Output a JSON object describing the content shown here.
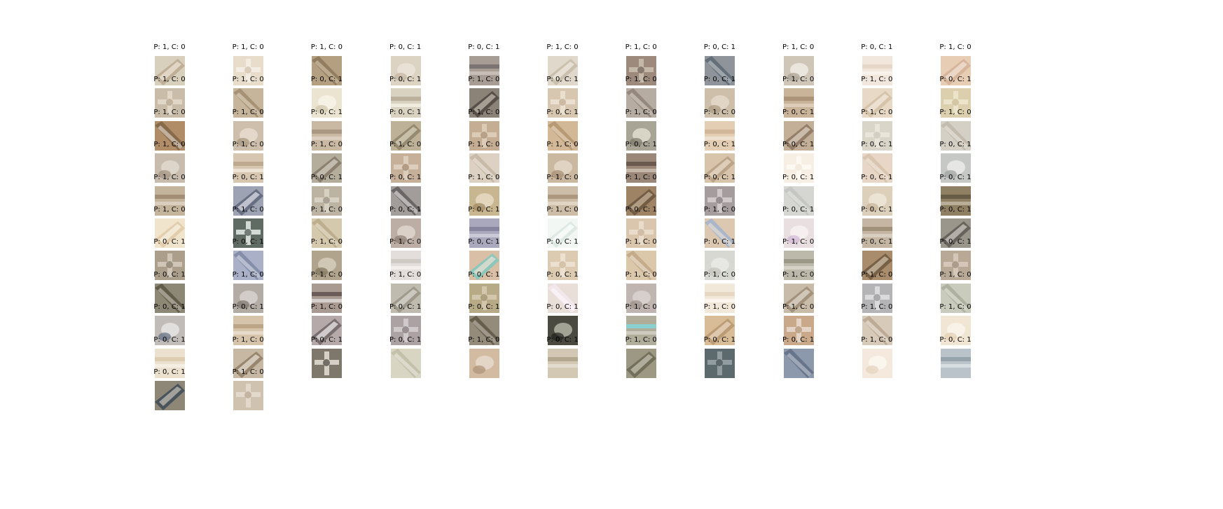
{
  "figure": {
    "columns": 11,
    "cells": [
      {
        "label": "P: 1, C: 0",
        "colors": [
          "#d9cfbd",
          "#b8a98f",
          "#efe7da"
        ]
      },
      {
        "label": "P: 1, C: 0",
        "colors": [
          "#e8dccb",
          "#c9b79c",
          "#f5efe6"
        ]
      },
      {
        "label": "P: 1, C: 0",
        "colors": [
          "#b49f81",
          "#8a7457",
          "#d8c8ad"
        ]
      },
      {
        "label": "P: 0, C: 1",
        "colors": [
          "#ddd3c3",
          "#c2b59f",
          "#ece5da"
        ]
      },
      {
        "label": "P: 0, C: 1",
        "colors": [
          "#a89d95",
          "#6f6a6a",
          "#d2cac2"
        ]
      },
      {
        "label": "P: 1, C: 0",
        "colors": [
          "#e0d8cb",
          "#c7bca9",
          "#f2ece2"
        ]
      },
      {
        "label": "P: 1, C: 0",
        "colors": [
          "#9d8a7c",
          "#5e4f47",
          "#cbbfb1"
        ]
      },
      {
        "label": "P: 0, C: 1",
        "colors": [
          "#8e949a",
          "#5a6570",
          "#c3c9cd"
        ]
      },
      {
        "label": "P: 1, C: 0",
        "colors": [
          "#cfc6b8",
          "#a99f90",
          "#f1ede6"
        ]
      },
      {
        "label": "P: 0, C: 1",
        "colors": [
          "#f2e7dc",
          "#e3d3c4",
          "#fbf6f0"
        ]
      },
      {
        "label": "P: 1, C: 0",
        "colors": [
          "#e8cdb5",
          "#d4b096",
          "#f4e6da"
        ]
      },
      {
        "label": "P: 1, C: 0",
        "colors": [
          "#c9bca8",
          "#a8977d",
          "#e5dccd"
        ]
      },
      {
        "label": "P: 1, C: 0",
        "colors": [
          "#c7b59b",
          "#9f8a6d",
          "#e4d7c4"
        ]
      },
      {
        "label": "P: 0, C: 1",
        "colors": [
          "#ebe4d1",
          "#cfc4a9",
          "#f8f4ea"
        ]
      },
      {
        "label": "P: 0, C: 1",
        "colors": [
          "#d9d2c0",
          "#b3a791",
          "#f7f3ea"
        ]
      },
      {
        "label": "P: 1, C: 0",
        "colors": [
          "#8c8378",
          "#4f4741",
          "#c8bfb3"
        ]
      },
      {
        "label": "P: 0, C: 1",
        "colors": [
          "#d8c7b0",
          "#b59f82",
          "#efe4d5"
        ]
      },
      {
        "label": "P: 1, C: 0",
        "colors": [
          "#b7aca1",
          "#8c8075",
          "#dcd3ca"
        ]
      },
      {
        "label": "P: 0, C: 1",
        "colors": [
          "#cdbfa9",
          "#ab9a80",
          "#e6dccd"
        ]
      },
      {
        "label": "P: 1, C: 0",
        "colors": [
          "#c9b49a",
          "#a58c6f",
          "#e3d5c2"
        ]
      },
      {
        "label": "P: 1, C: 0",
        "colors": [
          "#e7d9c6",
          "#d1bea5",
          "#f5ede2"
        ]
      },
      {
        "label": "P: 0, C: 1",
        "colors": [
          "#dccfae",
          "#c2b28b",
          "#efe6d0"
        ]
      },
      {
        "label": "P: 1, C: 0",
        "colors": [
          "#b08d66",
          "#7c6142",
          "#e8e0d5"
        ]
      },
      {
        "label": "P: 1, C: 0",
        "colors": [
          "#cdbfac",
          "#a6957e",
          "#e8dfd2"
        ]
      },
      {
        "label": "P: 0, C: 1",
        "colors": [
          "#c9b9a3",
          "#a39079",
          "#e2d7c8"
        ]
      },
      {
        "label": "P: 0, C: 1",
        "colors": [
          "#bdb297",
          "#8f8468",
          "#ddd5c1"
        ]
      },
      {
        "label": "P: 1, C: 0",
        "colors": [
          "#c4ad92",
          "#9b8266",
          "#e0d0bd"
        ]
      },
      {
        "label": "P: 0, C: 1",
        "colors": [
          "#d2b896",
          "#b0916c",
          "#ecdcc6"
        ]
      },
      {
        "label": "P: 1, C: 0",
        "colors": [
          "#a9a596",
          "#7c7868",
          "#e4e0d2"
        ]
      },
      {
        "label": "P: 1, C: 0",
        "colors": [
          "#e3cdb3",
          "#cdb293",
          "#f2e6d7"
        ]
      },
      {
        "label": "P: 0, C: 1",
        "colors": [
          "#c3ae97",
          "#8d7560",
          "#e3d6c8"
        ]
      },
      {
        "label": "P: 1, C: 0",
        "colors": [
          "#d9d5c8",
          "#c5bfb0",
          "#ebe8de"
        ]
      },
      {
        "label": "P: 1, C: 0",
        "colors": [
          "#d5d0c6",
          "#bdb5a8",
          "#ebe7e0"
        ]
      },
      {
        "label": "P: 1, C: 0",
        "colors": [
          "#c7bcae",
          "#a1927f",
          "#e2dbd1"
        ]
      },
      {
        "label": "P: 1, C: 0",
        "colors": [
          "#d8c7b0",
          "#b6a184",
          "#f3ece2"
        ]
      },
      {
        "label": "P: 1, C: 0",
        "colors": [
          "#b5ad9b",
          "#85796a",
          "#d9d3c6"
        ]
      },
      {
        "label": "P: 1, C: 0",
        "colors": [
          "#c6b09a",
          "#95785e",
          "#e1d2c2"
        ]
      },
      {
        "label": "P: 1, C: 0",
        "colors": [
          "#dcd1c2",
          "#c2b4a1",
          "#efe9e0"
        ]
      },
      {
        "label": "P: 1, C: 0",
        "colors": [
          "#cbb8a1",
          "#a48c71",
          "#e5d9cb"
        ]
      },
      {
        "label": "P: 0, C: 1",
        "colors": [
          "#9a8777",
          "#5d4d43",
          "#d1c5b8"
        ]
      },
      {
        "label": "P: 0, C: 1",
        "colors": [
          "#d7c4ab",
          "#b69f81",
          "#ecdfcf"
        ]
      },
      {
        "label": "P: 0, C: 1",
        "colors": [
          "#f8efe4",
          "#efe1d0",
          "#fdf9f4"
        ]
      },
      {
        "label": "P: 0, C: 1",
        "colors": [
          "#e8d7c6",
          "#d5c0a9",
          "#f4ebe1"
        ]
      },
      {
        "label": "P: 0, C: 1",
        "colors": [
          "#c6c8c6",
          "#9da1a0",
          "#eeeeec"
        ]
      },
      {
        "label": "P: 1, C: 0",
        "colors": [
          "#c4b49c",
          "#98846a",
          "#e2d8c9"
        ]
      },
      {
        "label": "P: 0, C: 1",
        "colors": [
          "#9da3b2",
          "#5f6679",
          "#e3e4ea"
        ]
      },
      {
        "label": "P: 0, C: 1",
        "colors": [
          "#bcb3a2",
          "#8c8271",
          "#dcd6ca"
        ]
      },
      {
        "label": "P: 0, C: 1",
        "colors": [
          "#a29c9a",
          "#5f5a5a",
          "#eceae8"
        ]
      },
      {
        "label": "P: 1, C: 0",
        "colors": [
          "#c8b691",
          "#9c8761",
          "#e8ddc5"
        ]
      },
      {
        "label": "P: 1, C: 0",
        "colors": [
          "#cdbca6",
          "#a38e74",
          "#e6dccf"
        ]
      },
      {
        "label": "P: 1, C: 0",
        "colors": [
          "#9e8465",
          "#6a553e",
          "#cbb89e"
        ]
      },
      {
        "label": "P: 0, C: 1",
        "colors": [
          "#a59d9d",
          "#6c6468",
          "#d7d1d2"
        ]
      },
      {
        "label": "P: 0, C: 1",
        "colors": [
          "#d5d6d2",
          "#c2c3be",
          "#e6e7e3"
        ]
      },
      {
        "label": "P: 0, C: 1",
        "colors": [
          "#ddd0bb",
          "#c6b497",
          "#efe7d9"
        ]
      },
      {
        "label": "P: 0, C: 1",
        "colors": [
          "#8f8064",
          "#5f533e",
          "#c7bda8"
        ]
      },
      {
        "label": "P: 1, C: 0",
        "colors": [
          "#f0e4cc",
          "#dfcaa6",
          "#faf4e8"
        ]
      },
      {
        "label": "P: 1, C: 0",
        "colors": [
          "#5f6b63",
          "#29332f",
          "#e8ece8"
        ]
      },
      {
        "label": "P: 1, C: 0",
        "colors": [
          "#d4c9ad",
          "#b7a986",
          "#ebe5d5"
        ]
      },
      {
        "label": "P: 0, C: 1",
        "colors": [
          "#bcaea4",
          "#8a7a70",
          "#e2d8d1"
        ]
      },
      {
        "label": "P: 0, C: 1",
        "colors": [
          "#aaa8bd",
          "#7d7b96",
          "#d6d4e2"
        ]
      },
      {
        "label": "P: 1, C: 0",
        "colors": [
          "#f3f7f4",
          "#d9e6e1",
          "#ffffff"
        ]
      },
      {
        "label": "P: 0, C: 1",
        "colors": [
          "#d9c6ad",
          "#c0a98b",
          "#ebdfd0"
        ]
      },
      {
        "label": "P: 1, C: 0",
        "colors": [
          "#dcc7b0",
          "#9eb2cf",
          "#ede2d6"
        ]
      },
      {
        "label": "P: 0, C: 1",
        "colors": [
          "#eadfe0",
          "#d2b7d5",
          "#f8f3f4"
        ]
      },
      {
        "label": "P: 0, C: 1",
        "colors": [
          "#c4b6a2",
          "#998872",
          "#dfd6ca"
        ]
      },
      {
        "label": "P: 0, C: 1",
        "colors": [
          "#9a968c",
          "#5f5b53",
          "#d3d0c9"
        ]
      },
      {
        "label": "P: 0, C: 1",
        "colors": [
          "#ab9f8c",
          "#766a58",
          "#d6cdbf"
        ]
      },
      {
        "label": "P: 0, C: 1",
        "colors": [
          "#a9b0c7",
          "#7b84a1",
          "#d9dde8"
        ]
      },
      {
        "label": "P: 1, C: 0",
        "colors": [
          "#b0a48c",
          "#7f735a",
          "#d8d0bf"
        ]
      },
      {
        "label": "P: 1, C: 0",
        "colors": [
          "#e3dedb",
          "#cbc4bf",
          "#f5f3f2"
        ]
      },
      {
        "label": "P: 0, C: 1",
        "colors": [
          "#d9bfa5",
          "#7fc7be",
          "#efe3d6"
        ]
      },
      {
        "label": "P: 0, C: 1",
        "colors": [
          "#ddcbb1",
          "#c3ab8a",
          "#efe5d7"
        ]
      },
      {
        "label": "P: 1, C: 0",
        "colors": [
          "#dbc7a9",
          "#bea481",
          "#f0e6d7"
        ]
      },
      {
        "label": "P: 0, C: 1",
        "colors": [
          "#d8d8d2",
          "#c3c3bb",
          "#ebebe7"
        ]
      },
      {
        "label": "P: 1, C: 0",
        "colors": [
          "#bcb8aa",
          "#959180",
          "#dcd9d0"
        ]
      },
      {
        "label": "P: 0, C: 1",
        "colors": [
          "#a88c6c",
          "#6f5840",
          "#d6c4ae"
        ]
      },
      {
        "label": "P: 0, C: 1",
        "colors": [
          "#b8a896",
          "#8e7b67",
          "#d8cdc1"
        ]
      },
      {
        "label": "P: 0, C: 1",
        "colors": [
          "#8d8775",
          "#57523f",
          "#cbc7bb"
        ]
      },
      {
        "label": "P: 1, C: 0",
        "colors": [
          "#b3aca4",
          "#7a736c",
          "#dad6d1"
        ]
      },
      {
        "label": "P: 1, C: 0",
        "colors": [
          "#a99a92",
          "#5c4d4b",
          "#e6dfdc"
        ]
      },
      {
        "label": "P: 1, C: 0",
        "colors": [
          "#c0bbaf",
          "#999386",
          "#deDbd4"
        ]
      },
      {
        "label": "P: 0, C: 1",
        "colors": [
          "#b7aa86",
          "#8f825e",
          "#d7cdb3"
        ]
      },
      {
        "label": "P: 0, C: 1",
        "colors": [
          "#eadfd8",
          "#f4e9f0",
          "#fcf8fb"
        ]
      },
      {
        "label": "P: 1, C: 0",
        "colors": [
          "#c0b5b0",
          "#9c8f8a",
          "#dcd6d3"
        ]
      },
      {
        "label": "P: 1, C: 0",
        "colors": [
          "#f2e8d9",
          "#e4d3bd",
          "#fcf8f1"
        ]
      },
      {
        "label": "P: 1, C: 0",
        "colors": [
          "#c8bba8",
          "#9d8c74",
          "#e4ddd2"
        ]
      },
      {
        "label": "P: 1, C: 0",
        "colors": [
          "#b4b3b5",
          "#86858a",
          "#e0e0e3"
        ]
      },
      {
        "label": "P: 1, C: 0",
        "colors": [
          "#c9cbbd",
          "#a7aa98",
          "#e4e6dd"
        ]
      },
      {
        "label": "P: 0, C: 1",
        "colors": [
          "#c1bcb8",
          "#606c82",
          "#e9e7e6"
        ]
      },
      {
        "label": "P: 0, C: 1",
        "colors": [
          "#d5c3aa",
          "#b69e80",
          "#ebe1d4"
        ]
      },
      {
        "label": "P: 1, C: 0",
        "colors": [
          "#b5aaa9",
          "#6f6566",
          "#f5f1f3"
        ]
      },
      {
        "label": "P: 0, C: 1",
        "colors": [
          "#aca1a3",
          "#6f6568",
          "#d6d0d2"
        ]
      },
      {
        "label": "P: 0, C: 1",
        "colors": [
          "#958b7a",
          "#5b5344",
          "#c5bfb2"
        ]
      },
      {
        "label": "P: 0, C: 1",
        "colors": [
          "#4a4a40",
          "#1f211b",
          "#b9b9aa"
        ]
      },
      {
        "label": "P: 1, C: 0",
        "colors": [
          "#b0ae9a",
          "#7fd9dc",
          "#d7d5c9"
        ]
      },
      {
        "label": "P: 1, C: 0",
        "colors": [
          "#d8bc97",
          "#b6966d",
          "#ecdcc6"
        ]
      },
      {
        "label": "P: 1, C: 0",
        "colors": [
          "#c9a98a",
          "#a58262",
          "#e9dccf"
        ]
      },
      {
        "label": "P: 1, C: 0",
        "colors": [
          "#d8cab9",
          "#b6a38d",
          "#f0e9e0"
        ]
      },
      {
        "label": "P: 1, C: 0",
        "colors": [
          "#f1e6d4",
          "#e2cfb2",
          "#faf5ec"
        ]
      },
      {
        "label": "P: 0, C: 1",
        "colors": [
          "#ece1ce",
          "#d9c7a9",
          "#f8f3ea"
        ]
      },
      {
        "label": "P: 1, C: 0",
        "colors": [
          "#c6b8a3",
          "#8f7d65",
          "#ebe5dc"
        ]
      },
      {
        "label": "P: 0, C: 1",
        "colors": [
          "#7e776b",
          "#2a2823",
          "#e3dfd6"
        ]
      },
      {
        "label": "P: 0, C: 1",
        "colors": [
          "#d8d5c3",
          "#bfbba4",
          "#ecebe2"
        ]
      },
      {
        "label": "P: 1, C: 0",
        "colors": [
          "#d2bba1",
          "#ad9276",
          "#e8ddd0"
        ]
      },
      {
        "label": "P: 0, C: 1",
        "colors": [
          "#d2c8b3",
          "#ab9f87",
          "#e7e2d6"
        ]
      },
      {
        "label": "P: 1, C: 0",
        "colors": [
          "#9c9883",
          "#6b6853",
          "#c9c6b8"
        ]
      },
      {
        "label": "P: 0, C: 1",
        "colors": [
          "#5d6a6d",
          "#34403f",
          "#9aa6aa"
        ]
      },
      {
        "label": "P: 0, C: 1",
        "colors": [
          "#8c98ab",
          "#5e6b82",
          "#c2c9d6"
        ]
      },
      {
        "label": "P: 1, C: 0",
        "colors": [
          "#f4e9dc",
          "#e5d2bd",
          "#fbf7f1"
        ]
      },
      {
        "label": "P: 0, C: 1",
        "colors": [
          "#b9c3c9",
          "#8e9ba3",
          "#e2e7ea"
        ]
      },
      {
        "label": "P: 0, C: 1",
        "colors": [
          "#8e8778",
          "#3c4a56",
          "#c9c3b8"
        ]
      },
      {
        "label": "P: 1, C: 0",
        "colors": [
          "#cfc3b0",
          "#ab9b82",
          "#e5ddd1"
        ]
      }
    ]
  }
}
